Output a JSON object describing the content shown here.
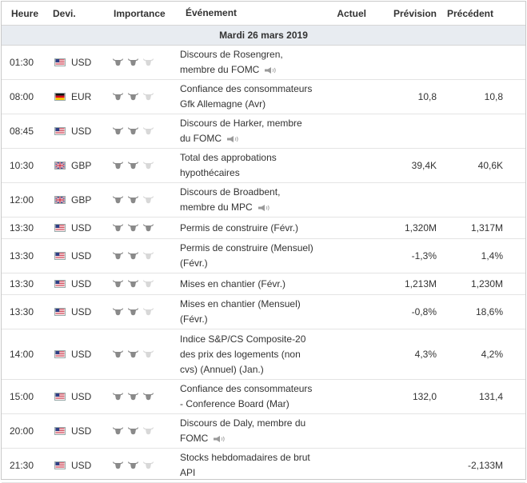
{
  "columns": {
    "time": "Heure",
    "currency": "Devi.",
    "importance": "Importance",
    "event": "Événement",
    "actual": "Actuel",
    "forecast": "Prévision",
    "previous": "Précédent"
  },
  "date_label": "Mardi 26 mars 2019",
  "colors": {
    "bull_active": "#8a8a8a",
    "bull_inactive": "#d8d8d8",
    "date_bar": "#e8ecf1"
  },
  "rows": [
    {
      "time": "01:30",
      "flag": "us",
      "currency": "USD",
      "importance": 2,
      "event_lines": [
        "Discours de Rosengren,",
        "membre du FOMC"
      ],
      "speech": true,
      "actual": "",
      "forecast": "",
      "previous": ""
    },
    {
      "time": "08:00",
      "flag": "de",
      "currency": "EUR",
      "importance": 2,
      "event_lines": [
        "Confiance des consommateurs",
        "Gfk Allemagne (Avr)"
      ],
      "speech": false,
      "actual": "",
      "forecast": "10,8",
      "previous": "10,8"
    },
    {
      "time": "08:45",
      "flag": "us",
      "currency": "USD",
      "importance": 2,
      "event_lines": [
        "Discours de Harker, membre",
        "du FOMC"
      ],
      "speech": true,
      "actual": "",
      "forecast": "",
      "previous": ""
    },
    {
      "time": "10:30",
      "flag": "gb",
      "currency": "GBP",
      "importance": 2,
      "event_lines": [
        "Total des approbations",
        "hypothécaires"
      ],
      "speech": false,
      "actual": "",
      "forecast": "39,4K",
      "previous": "40,6K"
    },
    {
      "time": "12:00",
      "flag": "gb",
      "currency": "GBP",
      "importance": 2,
      "event_lines": [
        "Discours de Broadbent,",
        "membre du MPC"
      ],
      "speech": true,
      "actual": "",
      "forecast": "",
      "previous": ""
    },
    {
      "time": "13:30",
      "flag": "us",
      "currency": "USD",
      "importance": 3,
      "event_lines": [
        "Permis de construire (Févr.)"
      ],
      "speech": false,
      "actual": "",
      "forecast": "1,320M",
      "previous": "1,317M"
    },
    {
      "time": "13:30",
      "flag": "us",
      "currency": "USD",
      "importance": 2,
      "event_lines": [
        "Permis de construire (Mensuel)",
        "(Févr.)"
      ],
      "speech": false,
      "actual": "",
      "forecast": "-1,3%",
      "previous": "1,4%"
    },
    {
      "time": "13:30",
      "flag": "us",
      "currency": "USD",
      "importance": 2,
      "event_lines": [
        "Mises en chantier (Févr.)"
      ],
      "speech": false,
      "actual": "",
      "forecast": "1,213M",
      "previous": "1,230M"
    },
    {
      "time": "13:30",
      "flag": "us",
      "currency": "USD",
      "importance": 2,
      "event_lines": [
        "Mises en chantier (Mensuel)",
        "(Févr.)"
      ],
      "speech": false,
      "actual": "",
      "forecast": "-0,8%",
      "previous": "18,6%"
    },
    {
      "time": "14:00",
      "flag": "us",
      "currency": "USD",
      "importance": 2,
      "event_lines": [
        "Indice S&P/CS Composite-20",
        "des prix des logements (non",
        "cvs) (Annuel) (Jan.)"
      ],
      "speech": false,
      "actual": "",
      "forecast": "4,3%",
      "previous": "4,2%"
    },
    {
      "time": "15:00",
      "flag": "us",
      "currency": "USD",
      "importance": 3,
      "event_lines": [
        "Confiance des consommateurs",
        "- Conference Board (Mar)"
      ],
      "speech": false,
      "actual": "",
      "forecast": "132,0",
      "previous": "131,4"
    },
    {
      "time": "20:00",
      "flag": "us",
      "currency": "USD",
      "importance": 2,
      "event_lines": [
        "Discours de Daly, membre du",
        "FOMC"
      ],
      "speech": true,
      "actual": "",
      "forecast": "",
      "previous": ""
    },
    {
      "time": "21:30",
      "flag": "us",
      "currency": "USD",
      "importance": 2,
      "event_lines": [
        "Stocks hebdomadaires de brut",
        "API"
      ],
      "speech": false,
      "actual": "",
      "forecast": "",
      "previous": "-2,133M"
    }
  ]
}
